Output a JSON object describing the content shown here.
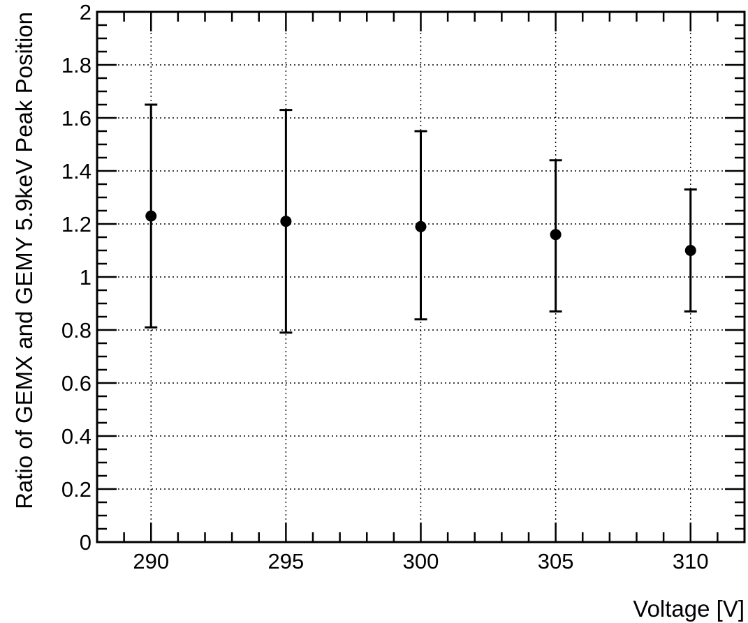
{
  "chart_data": {
    "type": "scatter",
    "title": "",
    "xlabel": "Voltage [V]",
    "ylabel": "Ratio of GEMX and GEMY 5.9keV Peak Position",
    "xlim": [
      288,
      312
    ],
    "ylim": [
      0,
      2
    ],
    "x_ticks": [
      290,
      295,
      300,
      305,
      310
    ],
    "x_tick_labels": [
      "290",
      "295",
      "300",
      "305",
      "310"
    ],
    "y_ticks": [
      0,
      0.2,
      0.4,
      0.6,
      0.8,
      1,
      1.2,
      1.4,
      1.6,
      1.8,
      2
    ],
    "y_tick_labels": [
      "0",
      "0.2",
      "0.4",
      "0.6",
      "0.8",
      "1",
      "1.2",
      "1.4",
      "1.6",
      "1.8",
      "2"
    ],
    "grid": true,
    "marker": "filled-circle",
    "series": [
      {
        "points": [
          {
            "x": 290,
            "y": 1.23,
            "y_low": 0.81,
            "y_high": 1.65
          },
          {
            "x": 295,
            "y": 1.21,
            "y_low": 0.79,
            "y_high": 1.63
          },
          {
            "x": 300,
            "y": 1.19,
            "y_low": 0.84,
            "y_high": 1.55
          },
          {
            "x": 305,
            "y": 1.16,
            "y_low": 0.87,
            "y_high": 1.44
          },
          {
            "x": 310,
            "y": 1.1,
            "y_low": 0.87,
            "y_high": 1.33
          }
        ]
      }
    ]
  }
}
